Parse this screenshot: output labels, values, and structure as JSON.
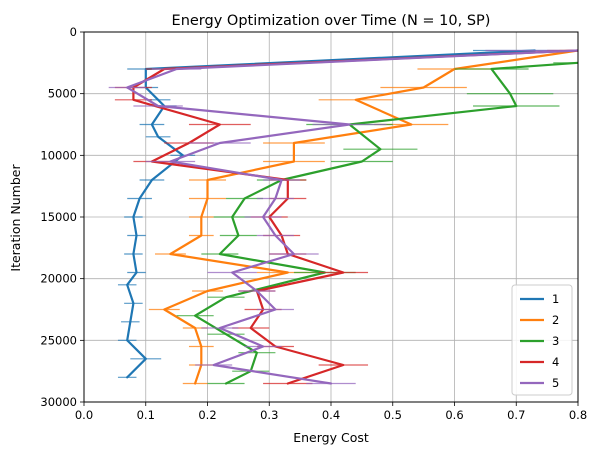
{
  "chart_data": {
    "type": "line",
    "orientation": "horizontal-x-value",
    "title": "Energy Optimization over Time (N = 10, SP)",
    "xlabel": "Energy Cost",
    "ylabel": "Iteration Number",
    "xlim": [
      0,
      0.8
    ],
    "ylim": [
      30000,
      0
    ],
    "y_inverted": true,
    "grid": true,
    "legend_location": "lower right",
    "xticks": [
      0.0,
      0.1,
      0.2,
      0.3,
      0.4,
      0.5,
      0.6,
      0.7,
      0.8
    ],
    "xtick_labels": [
      "0.0",
      "0.1",
      "0.2",
      "0.3",
      "0.4",
      "0.5",
      "0.6",
      "0.7",
      "0.8"
    ],
    "yticks": [
      0,
      5000,
      10000,
      15000,
      20000,
      25000,
      30000
    ],
    "ytick_labels": [
      "0",
      "5000",
      "10000",
      "15000",
      "20000",
      "25000",
      "30000"
    ],
    "series": [
      {
        "name": "1",
        "color": "#1f77b4",
        "iterations": [
          1500,
          3000,
          4500,
          5500,
          6000,
          7500,
          8500,
          10000,
          12000,
          13500,
          15000,
          16500,
          18000,
          19500,
          20500,
          22000,
          23500,
          25000,
          26500,
          28000
        ],
        "values": [
          0.73,
          0.1,
          0.1,
          0.12,
          0.13,
          0.11,
          0.12,
          0.16,
          0.11,
          0.09,
          0.08,
          0.085,
          0.08,
          0.085,
          0.07,
          0.08,
          0.075,
          0.07,
          0.1,
          0.07
        ],
        "errors": [
          0.1,
          0.03,
          0.02,
          0.02,
          0.02,
          0.02,
          0.02,
          0.02,
          0.02,
          0.02,
          0.015,
          0.015,
          0.015,
          0.015,
          0.015,
          0.015,
          0.015,
          0.015,
          0.025,
          0.015
        ]
      },
      {
        "name": "2",
        "color": "#ff7f0e",
        "iterations": [
          1500,
          3000,
          4500,
          5500,
          7500,
          9000,
          10500,
          12000,
          13500,
          15000,
          16500,
          18000,
          19500,
          21000,
          22500,
          24000,
          25500,
          27000,
          28500
        ],
        "values": [
          0.8,
          0.6,
          0.55,
          0.44,
          0.53,
          0.34,
          0.34,
          0.2,
          0.2,
          0.19,
          0.19,
          0.14,
          0.33,
          0.2,
          0.13,
          0.18,
          0.19,
          0.19,
          0.18
        ],
        "errors": [
          0.03,
          0.06,
          0.07,
          0.06,
          0.06,
          0.05,
          0.05,
          0.03,
          0.03,
          0.02,
          0.02,
          0.025,
          0.05,
          0.025,
          0.025,
          0.02,
          0.02,
          0.02,
          0.02
        ]
      },
      {
        "name": "3",
        "color": "#2ca02c",
        "iterations": [
          2500,
          3000,
          5000,
          6000,
          7500,
          9500,
          10500,
          12000,
          13500,
          15000,
          16500,
          18000,
          19500,
          21500,
          23000,
          24500,
          26000,
          27500,
          28500
        ],
        "values": [
          0.8,
          0.66,
          0.69,
          0.7,
          0.43,
          0.48,
          0.45,
          0.32,
          0.26,
          0.24,
          0.25,
          0.22,
          0.39,
          0.23,
          0.18,
          0.23,
          0.28,
          0.27,
          0.23
        ],
        "errors": [
          0.04,
          0.06,
          0.07,
          0.07,
          0.07,
          0.06,
          0.05,
          0.04,
          0.03,
          0.03,
          0.03,
          0.03,
          0.05,
          0.03,
          0.03,
          0.03,
          0.03,
          0.03,
          0.03
        ]
      },
      {
        "name": "4",
        "color": "#d62728",
        "iterations": [
          1500,
          3000,
          4500,
          5500,
          7500,
          9000,
          10500,
          12000,
          13500,
          15000,
          16500,
          18000,
          19500,
          21000,
          22500,
          24000,
          25500,
          27000,
          28500
        ],
        "values": [
          0.8,
          0.13,
          0.08,
          0.08,
          0.22,
          0.17,
          0.11,
          0.33,
          0.33,
          0.3,
          0.32,
          0.33,
          0.42,
          0.28,
          0.29,
          0.27,
          0.31,
          0.42,
          0.33
        ],
        "errors": [
          0.05,
          0.03,
          0.03,
          0.03,
          0.05,
          0.04,
          0.03,
          0.03,
          0.03,
          0.03,
          0.03,
          0.03,
          0.04,
          0.03,
          0.03,
          0.03,
          0.03,
          0.04,
          0.04
        ]
      },
      {
        "name": "5",
        "color": "#9467bd",
        "iterations": [
          1500,
          3000,
          4500,
          6000,
          7500,
          9000,
          10500,
          12000,
          13500,
          15000,
          16500,
          18000,
          19500,
          21000,
          22500,
          24000,
          25500,
          27000,
          28500
        ],
        "values": [
          0.8,
          0.15,
          0.07,
          0.12,
          0.43,
          0.22,
          0.14,
          0.32,
          0.31,
          0.29,
          0.31,
          0.34,
          0.24,
          0.28,
          0.31,
          0.22,
          0.29,
          0.21,
          0.4
        ],
        "errors": [
          0.15,
          0.04,
          0.03,
          0.04,
          0.06,
          0.05,
          0.04,
          0.03,
          0.03,
          0.03,
          0.03,
          0.04,
          0.04,
          0.03,
          0.03,
          0.03,
          0.03,
          0.03,
          0.04
        ]
      }
    ]
  }
}
